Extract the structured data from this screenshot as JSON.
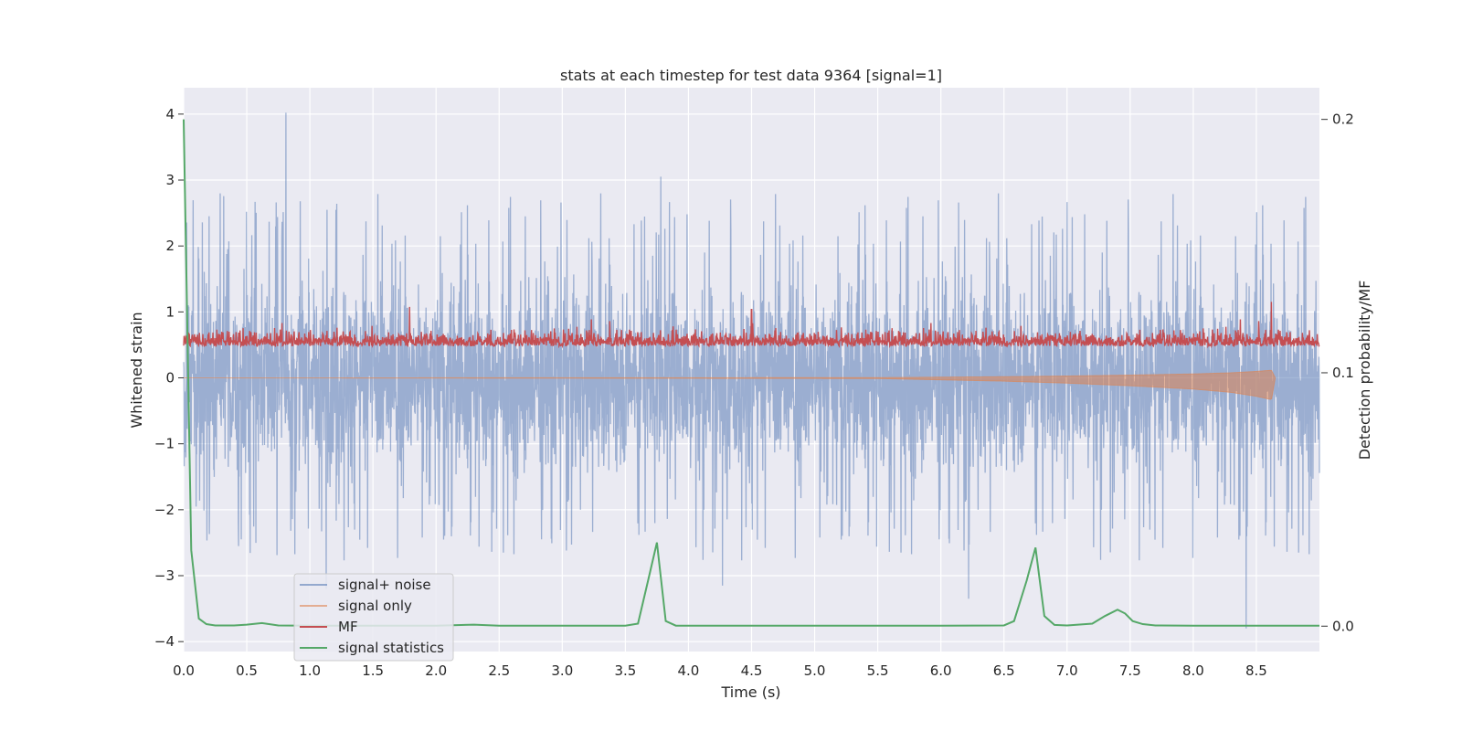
{
  "chart_data": {
    "type": "line",
    "title": "stats at each timestep for test data 9364 [signal=1]",
    "xlabel": "Time (s)",
    "ylabel_left": "Whitened strain",
    "ylabel_right": "Detection probability/MF",
    "xlim": [
      0.0,
      9.0
    ],
    "ylim_left": [
      -4.15,
      4.4
    ],
    "ylim_right": [
      -0.01,
      0.2125
    ],
    "x_ticks": [
      "0.0",
      "0.5",
      "1.0",
      "1.5",
      "2.0",
      "2.5",
      "3.0",
      "3.5",
      "4.0",
      "4.5",
      "5.0",
      "5.5",
      "6.0",
      "6.5",
      "7.0",
      "7.5",
      "8.0",
      "8.5"
    ],
    "y_ticks_left": [
      "4",
      "3",
      "2",
      "1",
      "0",
      "−1",
      "−2",
      "−3",
      "−4"
    ],
    "y_ticks_right": [
      "0.2",
      "0.1",
      "0.0"
    ],
    "grid": true,
    "legend_position": "lower-left",
    "colors": {
      "signal_noise": "#4c72b0",
      "signal_only": "#dd8452",
      "mf": "#c44e52",
      "stats": "#55a868",
      "plot_bg": "#eaeaf2",
      "grid": "#ffffff"
    },
    "series": [
      {
        "name": "signal+ noise",
        "axis": "left",
        "description_values": "dense whitened-strain noise roughly within [-2.5, 2.5] with spikes to 4.0 near t=0.81 and -3.8 near t=8.42",
        "x": [
          0.0,
          0.81,
          1.13,
          3.78,
          4.27,
          6.22,
          8.42,
          8.93
        ],
        "values": [
          0.0,
          4.02,
          -3.2,
          3.05,
          -3.15,
          -3.35,
          -3.8,
          0.0
        ]
      },
      {
        "name": "signal only",
        "axis": "left",
        "x": [
          0.0,
          5.5,
          6.0,
          6.5,
          7.0,
          7.5,
          8.0,
          8.3,
          8.5,
          8.62,
          8.65
        ],
        "values": [
          0.0,
          0.01,
          0.03,
          0.05,
          0.08,
          0.12,
          0.17,
          0.22,
          0.28,
          0.33,
          0.0
        ]
      },
      {
        "name": "MF",
        "axis": "right",
        "x": [
          0.0,
          1.79,
          4.5,
          8.62,
          9.0
        ],
        "values": [
          0.108,
          0.126,
          0.125,
          0.128,
          0.11
        ]
      },
      {
        "name": "signal statistics",
        "axis": "right",
        "x": [
          0.0,
          0.06,
          0.12,
          0.18,
          0.25,
          0.4,
          0.5,
          0.62,
          0.75,
          1.0,
          2.0,
          2.3,
          2.5,
          3.0,
          3.5,
          3.6,
          3.68,
          3.75,
          3.82,
          3.9,
          4.0,
          5.0,
          6.0,
          6.5,
          6.58,
          6.68,
          6.75,
          6.82,
          6.9,
          7.0,
          7.2,
          7.3,
          7.4,
          7.46,
          7.52,
          7.6,
          7.7,
          8.0,
          9.0
        ],
        "values": [
          0.2,
          0.03,
          0.003,
          0.0008,
          0.0003,
          0.0003,
          0.0006,
          0.0012,
          0.0003,
          0.0002,
          0.0002,
          0.0006,
          0.0002,
          0.0002,
          0.0002,
          0.001,
          0.018,
          0.033,
          0.002,
          0.0002,
          0.0002,
          0.0002,
          0.0002,
          0.0003,
          0.002,
          0.018,
          0.031,
          0.004,
          0.0005,
          0.0003,
          0.001,
          0.004,
          0.0065,
          0.005,
          0.002,
          0.0008,
          0.0003,
          0.0002,
          0.0002
        ]
      }
    ]
  }
}
